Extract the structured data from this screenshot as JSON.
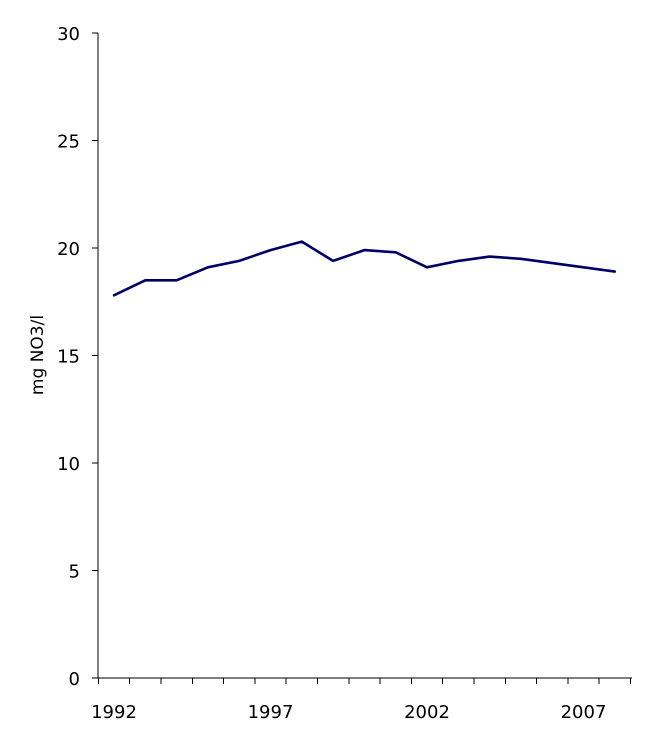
{
  "chart_data": {
    "type": "line",
    "title": "",
    "xlabel": "",
    "ylabel": "mg NO3/l",
    "x": [
      1992,
      1993,
      1994,
      1995,
      1996,
      1997,
      1998,
      1999,
      2000,
      2001,
      2002,
      2003,
      2004,
      2005,
      2006,
      2007,
      2008
    ],
    "series": [
      {
        "values": [
          17.8,
          18.5,
          18.5,
          19.1,
          19.4,
          19.9,
          20.3,
          19.4,
          19.9,
          19.8,
          19.1,
          19.4,
          19.6,
          19.5,
          19.3,
          19.1,
          18.9
        ],
        "color": "#000066"
      }
    ],
    "xlim": [
      1992,
      2008
    ],
    "ylim": [
      0,
      30
    ],
    "y_ticks": [
      0,
      5,
      10,
      15,
      20,
      25,
      30
    ],
    "x_tick_labels": [
      1992,
      1997,
      2002,
      2007
    ],
    "grid": false,
    "legend": "none"
  }
}
